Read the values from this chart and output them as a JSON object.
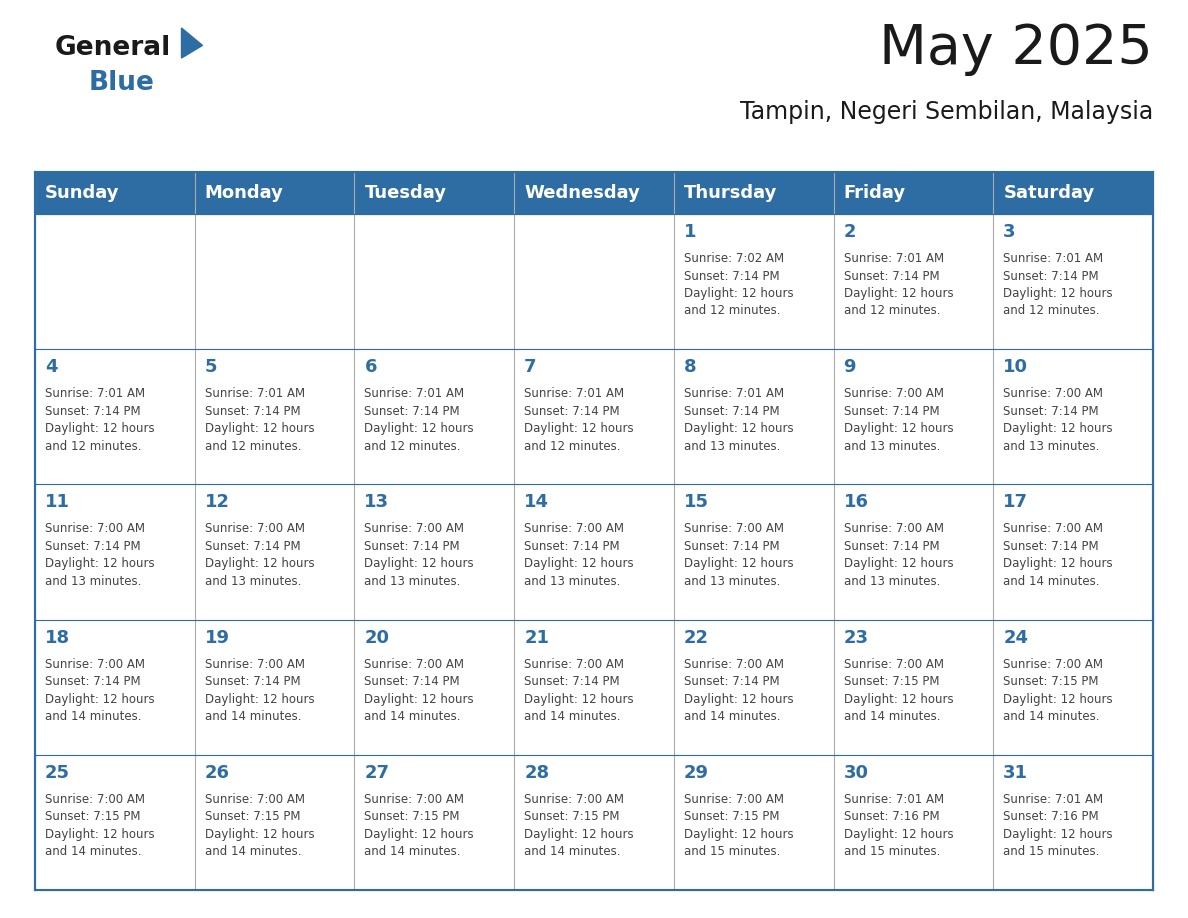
{
  "title": "May 2025",
  "subtitle": "Tampin, Negeri Sembilan, Malaysia",
  "header_bg": "#2E6DA4",
  "header_text": "#FFFFFF",
  "day_number_color": "#2E6DA4",
  "info_text_color": "#444444",
  "border_color": "#2E6DA4",
  "cell_border_color": "#aaaaaa",
  "days_of_week": [
    "Sunday",
    "Monday",
    "Tuesday",
    "Wednesday",
    "Thursday",
    "Friday",
    "Saturday"
  ],
  "weeks": [
    [
      {
        "day": null,
        "info": null
      },
      {
        "day": null,
        "info": null
      },
      {
        "day": null,
        "info": null
      },
      {
        "day": null,
        "info": null
      },
      {
        "day": 1,
        "info": "Sunrise: 7:02 AM\nSunset: 7:14 PM\nDaylight: 12 hours\nand 12 minutes."
      },
      {
        "day": 2,
        "info": "Sunrise: 7:01 AM\nSunset: 7:14 PM\nDaylight: 12 hours\nand 12 minutes."
      },
      {
        "day": 3,
        "info": "Sunrise: 7:01 AM\nSunset: 7:14 PM\nDaylight: 12 hours\nand 12 minutes."
      }
    ],
    [
      {
        "day": 4,
        "info": "Sunrise: 7:01 AM\nSunset: 7:14 PM\nDaylight: 12 hours\nand 12 minutes."
      },
      {
        "day": 5,
        "info": "Sunrise: 7:01 AM\nSunset: 7:14 PM\nDaylight: 12 hours\nand 12 minutes."
      },
      {
        "day": 6,
        "info": "Sunrise: 7:01 AM\nSunset: 7:14 PM\nDaylight: 12 hours\nand 12 minutes."
      },
      {
        "day": 7,
        "info": "Sunrise: 7:01 AM\nSunset: 7:14 PM\nDaylight: 12 hours\nand 12 minutes."
      },
      {
        "day": 8,
        "info": "Sunrise: 7:01 AM\nSunset: 7:14 PM\nDaylight: 12 hours\nand 13 minutes."
      },
      {
        "day": 9,
        "info": "Sunrise: 7:00 AM\nSunset: 7:14 PM\nDaylight: 12 hours\nand 13 minutes."
      },
      {
        "day": 10,
        "info": "Sunrise: 7:00 AM\nSunset: 7:14 PM\nDaylight: 12 hours\nand 13 minutes."
      }
    ],
    [
      {
        "day": 11,
        "info": "Sunrise: 7:00 AM\nSunset: 7:14 PM\nDaylight: 12 hours\nand 13 minutes."
      },
      {
        "day": 12,
        "info": "Sunrise: 7:00 AM\nSunset: 7:14 PM\nDaylight: 12 hours\nand 13 minutes."
      },
      {
        "day": 13,
        "info": "Sunrise: 7:00 AM\nSunset: 7:14 PM\nDaylight: 12 hours\nand 13 minutes."
      },
      {
        "day": 14,
        "info": "Sunrise: 7:00 AM\nSunset: 7:14 PM\nDaylight: 12 hours\nand 13 minutes."
      },
      {
        "day": 15,
        "info": "Sunrise: 7:00 AM\nSunset: 7:14 PM\nDaylight: 12 hours\nand 13 minutes."
      },
      {
        "day": 16,
        "info": "Sunrise: 7:00 AM\nSunset: 7:14 PM\nDaylight: 12 hours\nand 13 minutes."
      },
      {
        "day": 17,
        "info": "Sunrise: 7:00 AM\nSunset: 7:14 PM\nDaylight: 12 hours\nand 14 minutes."
      }
    ],
    [
      {
        "day": 18,
        "info": "Sunrise: 7:00 AM\nSunset: 7:14 PM\nDaylight: 12 hours\nand 14 minutes."
      },
      {
        "day": 19,
        "info": "Sunrise: 7:00 AM\nSunset: 7:14 PM\nDaylight: 12 hours\nand 14 minutes."
      },
      {
        "day": 20,
        "info": "Sunrise: 7:00 AM\nSunset: 7:14 PM\nDaylight: 12 hours\nand 14 minutes."
      },
      {
        "day": 21,
        "info": "Sunrise: 7:00 AM\nSunset: 7:14 PM\nDaylight: 12 hours\nand 14 minutes."
      },
      {
        "day": 22,
        "info": "Sunrise: 7:00 AM\nSunset: 7:14 PM\nDaylight: 12 hours\nand 14 minutes."
      },
      {
        "day": 23,
        "info": "Sunrise: 7:00 AM\nSunset: 7:15 PM\nDaylight: 12 hours\nand 14 minutes."
      },
      {
        "day": 24,
        "info": "Sunrise: 7:00 AM\nSunset: 7:15 PM\nDaylight: 12 hours\nand 14 minutes."
      }
    ],
    [
      {
        "day": 25,
        "info": "Sunrise: 7:00 AM\nSunset: 7:15 PM\nDaylight: 12 hours\nand 14 minutes."
      },
      {
        "day": 26,
        "info": "Sunrise: 7:00 AM\nSunset: 7:15 PM\nDaylight: 12 hours\nand 14 minutes."
      },
      {
        "day": 27,
        "info": "Sunrise: 7:00 AM\nSunset: 7:15 PM\nDaylight: 12 hours\nand 14 minutes."
      },
      {
        "day": 28,
        "info": "Sunrise: 7:00 AM\nSunset: 7:15 PM\nDaylight: 12 hours\nand 14 minutes."
      },
      {
        "day": 29,
        "info": "Sunrise: 7:00 AM\nSunset: 7:15 PM\nDaylight: 12 hours\nand 15 minutes."
      },
      {
        "day": 30,
        "info": "Sunrise: 7:01 AM\nSunset: 7:16 PM\nDaylight: 12 hours\nand 15 minutes."
      },
      {
        "day": 31,
        "info": "Sunrise: 7:01 AM\nSunset: 7:16 PM\nDaylight: 12 hours\nand 15 minutes."
      }
    ]
  ],
  "logo_text_general": "General",
  "logo_text_blue": "Blue",
  "logo_triangle_color": "#2E6DA4",
  "logo_general_color": "#1a1a1a",
  "title_fontsize": 40,
  "subtitle_fontsize": 17,
  "header_fontsize": 13,
  "day_num_fontsize": 13,
  "info_fontsize": 8.5,
  "fig_width": 11.88,
  "fig_height": 9.18,
  "fig_dpi": 100
}
